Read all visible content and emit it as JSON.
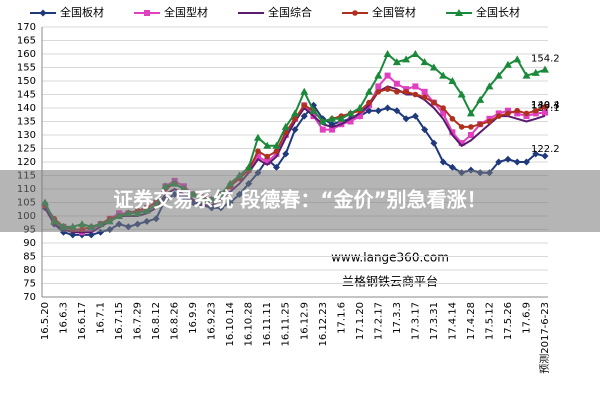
{
  "chart_data": {
    "type": "line",
    "categories": [
      "16.5.20",
      null,
      "16.6.3",
      null,
      "16.6.17",
      null,
      "16.7.1",
      null,
      "16.7.15",
      null,
      "16.7.29",
      null,
      "16.8.12",
      null,
      "16.8.26",
      null,
      "16.9.9",
      null,
      "16.9.23",
      null,
      "16.10.14",
      null,
      "16.10.28",
      null,
      "16.11.11",
      null,
      "16.11.25",
      null,
      "16.12.9",
      null,
      "16.12.23",
      null,
      "17.1.6",
      null,
      "17.1.20",
      null,
      "17.2.17",
      null,
      "17.3.3",
      null,
      "17.3.17",
      null,
      "17.3.31",
      null,
      "17.4.14",
      null,
      "17.4.28",
      null,
      "17.5.12",
      null,
      "17.5.26",
      null,
      "17.6.9",
      null,
      "预测2017-6-23"
    ],
    "series": [
      {
        "name": "全国板材",
        "color": "#1f3a7a",
        "marker": "diamond",
        "values": [
          103,
          97,
          94,
          93,
          93,
          93,
          94,
          95,
          97,
          96,
          97,
          98,
          99,
          106,
          108,
          107,
          105,
          104,
          103,
          103,
          105,
          108,
          112,
          116,
          121,
          118,
          123,
          132,
          137,
          141,
          136,
          134,
          135,
          136,
          137,
          139,
          139,
          140,
          139,
          136,
          137,
          132,
          127,
          120,
          118,
          116,
          117,
          116,
          116,
          120,
          121,
          120,
          120,
          123,
          122.2
        ]
      },
      {
        "name": "全国型材",
        "color": "#e040c0",
        "marker": "square",
        "values": [
          104,
          98,
          96,
          95,
          94,
          95,
          97,
          99,
          101,
          101,
          101,
          103,
          105,
          111,
          113,
          111,
          108,
          106,
          106,
          108,
          111,
          114,
          117,
          122,
          120,
          123,
          130,
          136,
          141,
          137,
          132,
          132,
          134,
          135,
          137,
          141,
          148,
          152,
          149,
          147,
          148,
          146,
          142,
          138,
          131,
          127,
          130,
          134,
          136,
          138,
          139,
          138,
          137,
          138,
          138.3
        ]
      },
      {
        "name": "全国综合",
        "color": "#5a1a6e",
        "marker": "none",
        "values": [
          103,
          97,
          95,
          94,
          94,
          94,
          96,
          98,
          100,
          100,
          100,
          101,
          103,
          108,
          110,
          108,
          106,
          104,
          104,
          106,
          109,
          112,
          116,
          121,
          119,
          122,
          129,
          135,
          140,
          137,
          134,
          133,
          134,
          136,
          138,
          141,
          146,
          148,
          147,
          145,
          145,
          143,
          140,
          136,
          130,
          126,
          128,
          131,
          134,
          137,
          137,
          136,
          135,
          136,
          137.1
        ]
      },
      {
        "name": "全国管材",
        "color": "#b03020",
        "marker": "circle",
        "values": [
          104,
          99,
          96,
          95,
          95,
          96,
          97,
          99,
          100,
          101,
          102,
          103,
          105,
          110,
          112,
          110,
          108,
          107,
          106,
          108,
          111,
          114,
          117,
          124,
          122,
          124,
          131,
          136,
          141,
          139,
          135,
          136,
          137,
          138,
          139,
          142,
          146,
          147,
          146,
          146,
          145,
          144,
          142,
          140,
          136,
          133,
          133,
          134,
          135,
          137,
          138,
          139,
          138,
          139,
          140.4
        ]
      },
      {
        "name": "全国长材",
        "color": "#1a8a3a",
        "marker": "triangle",
        "values": [
          105,
          98,
          96,
          96,
          97,
          96,
          97,
          98,
          100,
          101,
          101,
          102,
          104,
          111,
          112,
          110,
          108,
          106,
          106,
          108,
          112,
          115,
          118,
          129,
          126,
          126,
          133,
          138,
          146,
          139,
          135,
          136,
          136,
          138,
          140,
          146,
          152,
          160,
          157,
          158,
          160,
          157,
          155,
          152,
          150,
          145,
          138,
          143,
          148,
          152,
          156,
          158,
          152,
          153,
          154.2
        ]
      }
    ],
    "ylim": [
      70,
      170
    ],
    "yticks": [
      70,
      75,
      80,
      85,
      90,
      95,
      100,
      105,
      110,
      115,
      120,
      125,
      130,
      135,
      140,
      145,
      150,
      155,
      160,
      165,
      170
    ],
    "grid": true,
    "annotations": [
      "www.lange360.com",
      "兰格钢铁云商平台"
    ]
  },
  "banner": "证券交易系统 段德春：“金价”别急看涨！"
}
